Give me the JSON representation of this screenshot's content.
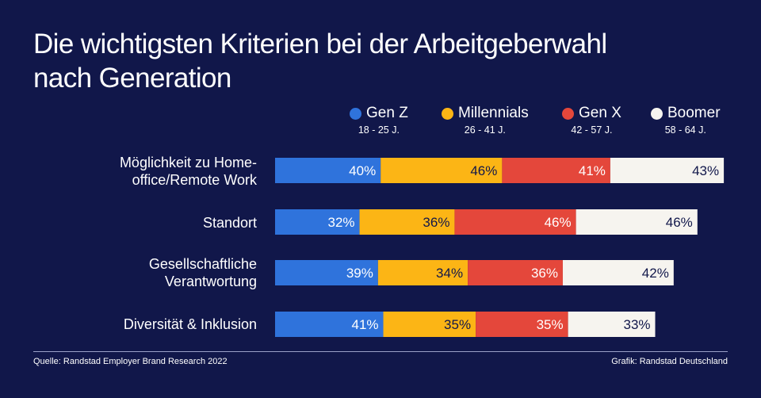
{
  "title_line1": "Die wichtigsten Kriterien bei der Arbeitgeberwahl",
  "title_line2": "nach Generation",
  "legend": [
    {
      "name": "Gen Z",
      "age": "18 - 25 J.",
      "color": "#2f73dc"
    },
    {
      "name": "Millennials",
      "age": "26 - 41 J.",
      "color": "#fcb515"
    },
    {
      "name": "Gen X",
      "age": "42 - 57 J.",
      "color": "#e4473b"
    },
    {
      "name": "Boomer",
      "age": "58 - 64 J.",
      "color": "#f6f4ef"
    }
  ],
  "chart_data": {
    "type": "bar",
    "orientation": "horizontal",
    "stacked": true,
    "categories": [
      [
        "Möglichkeit zu Home-",
        "office/Remote Work"
      ],
      [
        "Standort"
      ],
      [
        "Gesellschaftliche",
        "Verantwortung"
      ],
      [
        "Diversität & Inklusion"
      ]
    ],
    "series": [
      {
        "name": "Gen Z",
        "values": [
          40,
          32,
          39,
          41
        ]
      },
      {
        "name": "Millennials",
        "values": [
          46,
          36,
          34,
          35
        ]
      },
      {
        "name": "Gen X",
        "values": [
          41,
          46,
          36,
          35
        ]
      },
      {
        "name": "Boomer",
        "values": [
          43,
          46,
          42,
          33
        ]
      }
    ],
    "value_labels": [
      [
        "40%",
        "46%",
        "41%",
        "43%"
      ],
      [
        "32%",
        "36%",
        "46%",
        "46%"
      ],
      [
        "39%",
        "34%",
        "36%",
        "42%"
      ],
      [
        "41%",
        "35%",
        "35%",
        "33%"
      ]
    ],
    "title": "Die wichtigsten Kriterien bei der Arbeitgeberwahl nach Generation",
    "xlabel": "",
    "ylabel": "",
    "grid": false,
    "legend_position": "top-right"
  },
  "footer_source": "Quelle: Randstad Employer Brand Research 2022",
  "footer_credit": "Grafik: Randstad Deutschland"
}
